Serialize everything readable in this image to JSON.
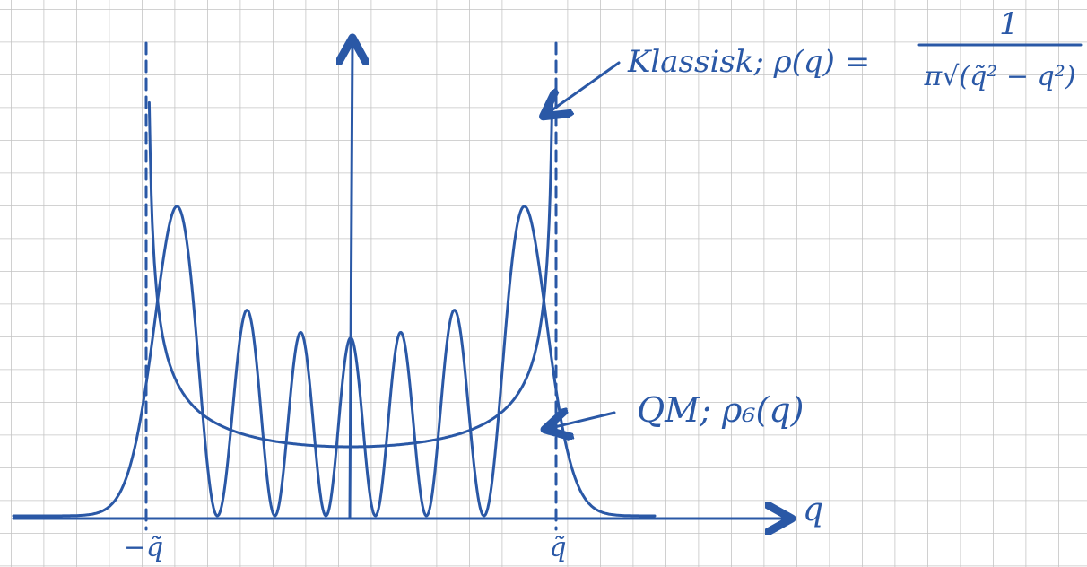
{
  "annotations": {
    "classical": {
      "label": "Klassisk; ρ(q) =",
      "numerator": "1",
      "denominator": "π√(q̃² − q²)"
    },
    "quantum": "QM; ρ₆(q)"
  },
  "axis": {
    "x_label": "q",
    "left_limit": "−q̃",
    "right_limit": "q̃"
  }
}
